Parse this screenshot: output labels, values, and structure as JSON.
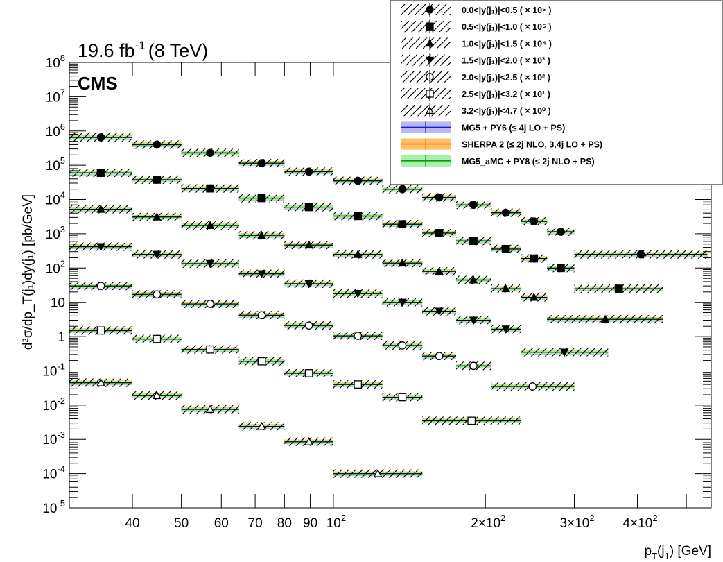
{
  "header": {
    "lumi_value": "19.6 fb",
    "lumi_exp": "-1",
    "energy": "(8 TeV)",
    "experiment": "CMS"
  },
  "chart_data": {
    "type": "scatter",
    "xscale": "log",
    "yscale": "log",
    "xlim": [
      30,
      560
    ],
    "ylim": [
      1e-05,
      100000000.0
    ],
    "xlabel_main": "p",
    "xlabel_sub1": "T",
    "xlabel_mid": "(j",
    "xlabel_sub2": "1",
    "xlabel_end": ") [GeV]",
    "ylabel": "d²σ/dp_T(j₁)dy(j₁) [pb/GeV]",
    "bin_edges": [
      30,
      40,
      50,
      65,
      80,
      100,
      125,
      150,
      175,
      205,
      235,
      265,
      300,
      350,
      450,
      550
    ],
    "x_ticks_major": [
      {
        "v": 40,
        "label": "40"
      },
      {
        "v": 50,
        "label": "50"
      },
      {
        "v": 60,
        "label": "60"
      },
      {
        "v": 70,
        "label": "70"
      },
      {
        "v": 80,
        "label": "80"
      },
      {
        "v": 90,
        "label": "90"
      }
    ],
    "x_ticks_sci": [
      {
        "v": 100,
        "mant": "10",
        "exp": "2"
      },
      {
        "v": 200,
        "mant": "2×10",
        "exp": "2"
      },
      {
        "v": 300,
        "mant": "3×10",
        "exp": "2"
      },
      {
        "v": 400,
        "mant": "4×10",
        "exp": "2"
      }
    ],
    "y_ticks": [
      {
        "v": 100000000.0,
        "mant": "10",
        "exp": "8"
      },
      {
        "v": 10000000.0,
        "mant": "10",
        "exp": "7"
      },
      {
        "v": 1000000.0,
        "mant": "10",
        "exp": "6"
      },
      {
        "v": 100000.0,
        "mant": "10",
        "exp": "5"
      },
      {
        "v": 10000.0,
        "mant": "10",
        "exp": "4"
      },
      {
        "v": 1000.0,
        "mant": "10",
        "exp": "3"
      },
      {
        "v": 100.0,
        "mant": "10",
        "exp": "2"
      },
      {
        "v": 10,
        "mant": "10",
        "exp": ""
      },
      {
        "v": 1,
        "mant": "1",
        "exp": ""
      },
      {
        "v": 0.1,
        "mant": "10",
        "exp": "-1"
      },
      {
        "v": 0.01,
        "mant": "10",
        "exp": "-2"
      },
      {
        "v": 0.001,
        "mant": "10",
        "exp": "-3"
      },
      {
        "v": 0.0001,
        "mant": "10",
        "exp": "-4"
      },
      {
        "v": 1e-05,
        "mant": "10",
        "exp": "-5"
      }
    ],
    "series": [
      {
        "label": "0.0<|y(j₁)|<0.5 ( × 10⁶ )",
        "marker": "circle-filled",
        "bins": [
          [
            30,
            40,
            650000
          ],
          [
            40,
            50,
            400000
          ],
          [
            50,
            65,
            230000
          ],
          [
            65,
            80,
            115000
          ],
          [
            80,
            100,
            65000
          ],
          [
            100,
            125,
            35000
          ],
          [
            125,
            150,
            20000
          ],
          [
            150,
            175,
            11500
          ],
          [
            175,
            205,
            7000
          ],
          [
            205,
            235,
            4100
          ],
          [
            235,
            265,
            2300
          ],
          [
            265,
            300,
            1150
          ],
          [
            300,
            550,
            250
          ]
        ]
      },
      {
        "label": "0.5<|y(j₁)|<1.0 ( × 10⁵ )",
        "marker": "square-filled",
        "bins": [
          [
            30,
            40,
            60000
          ],
          [
            40,
            50,
            38000
          ],
          [
            50,
            65,
            21000
          ],
          [
            65,
            80,
            11000
          ],
          [
            80,
            100,
            6000
          ],
          [
            100,
            125,
            3300
          ],
          [
            125,
            150,
            1900
          ],
          [
            150,
            175,
            1050
          ],
          [
            175,
            205,
            620
          ],
          [
            205,
            235,
            360
          ],
          [
            235,
            265,
            190
          ],
          [
            265,
            300,
            100
          ],
          [
            300,
            450,
            25
          ]
        ]
      },
      {
        "label": "1.0<|y(j₁)|<1.5 ( × 10⁴ )",
        "marker": "triangle-filled",
        "bins": [
          [
            30,
            40,
            5200
          ],
          [
            40,
            50,
            3100
          ],
          [
            50,
            65,
            1750
          ],
          [
            65,
            80,
            900
          ],
          [
            80,
            100,
            470
          ],
          [
            100,
            125,
            250
          ],
          [
            125,
            150,
            140
          ],
          [
            150,
            175,
            80
          ],
          [
            175,
            205,
            45
          ],
          [
            205,
            235,
            25
          ],
          [
            235,
            265,
            14
          ],
          [
            265,
            450,
            3.2
          ]
        ]
      },
      {
        "label": "1.5<|y(j₁)|<2.0 ( × 10³ )",
        "marker": "triangle-down-filled",
        "bins": [
          [
            30,
            40,
            420
          ],
          [
            40,
            50,
            250
          ],
          [
            50,
            65,
            135
          ],
          [
            65,
            80,
            68
          ],
          [
            80,
            100,
            35
          ],
          [
            100,
            125,
            18
          ],
          [
            125,
            150,
            10
          ],
          [
            150,
            175,
            5.5
          ],
          [
            175,
            205,
            3
          ],
          [
            205,
            235,
            1.65
          ],
          [
            235,
            350,
            0.35
          ]
        ]
      },
      {
        "label": "2.0<|y(j₁)|<2.5 ( × 10² )",
        "marker": "circle-open",
        "bins": [
          [
            30,
            40,
            30
          ],
          [
            40,
            50,
            17
          ],
          [
            50,
            65,
            9
          ],
          [
            65,
            80,
            4.2
          ],
          [
            80,
            100,
            2.1
          ],
          [
            100,
            125,
            1.05
          ],
          [
            125,
            150,
            0.55
          ],
          [
            150,
            175,
            0.27
          ],
          [
            175,
            205,
            0.14
          ],
          [
            205,
            300,
            0.035
          ]
        ]
      },
      {
        "label": "2.5<|y(j₁)|<3.2 ( × 10¹ )",
        "marker": "square-open",
        "bins": [
          [
            30,
            40,
            1.5
          ],
          [
            40,
            50,
            0.85
          ],
          [
            50,
            65,
            0.42
          ],
          [
            65,
            80,
            0.19
          ],
          [
            80,
            100,
            0.085
          ],
          [
            100,
            125,
            0.04
          ],
          [
            125,
            150,
            0.017
          ],
          [
            150,
            235,
            0.0035
          ]
        ]
      },
      {
        "label": "3.2<|y(j₁)|<4.7 ( × 10⁰ )",
        "marker": "triangle-open",
        "bins": [
          [
            30,
            40,
            0.045
          ],
          [
            40,
            50,
            0.019
          ],
          [
            50,
            65,
            0.0075
          ],
          [
            65,
            80,
            0.0024
          ],
          [
            80,
            100,
            0.00085
          ],
          [
            100,
            150,
            0.0001
          ]
        ]
      }
    ],
    "models": [
      {
        "label": "MG5 + PY6 (≤ 4j LO + PS)",
        "line": "#1c1cd8",
        "band": "#b8b8f4",
        "factor": 0.95
      },
      {
        "label": "SHERPA 2 (≤ 2j NLO, 3,4j LO + PS)",
        "line": "#ff6a00",
        "band": "#ffbf66",
        "factor": 1.03
      },
      {
        "label": "MG5_aMC + PY8 (≤ 2j NLO + PS)",
        "line": "#00a000",
        "band": "#aaeeaa",
        "factor": 0.99
      }
    ]
  }
}
